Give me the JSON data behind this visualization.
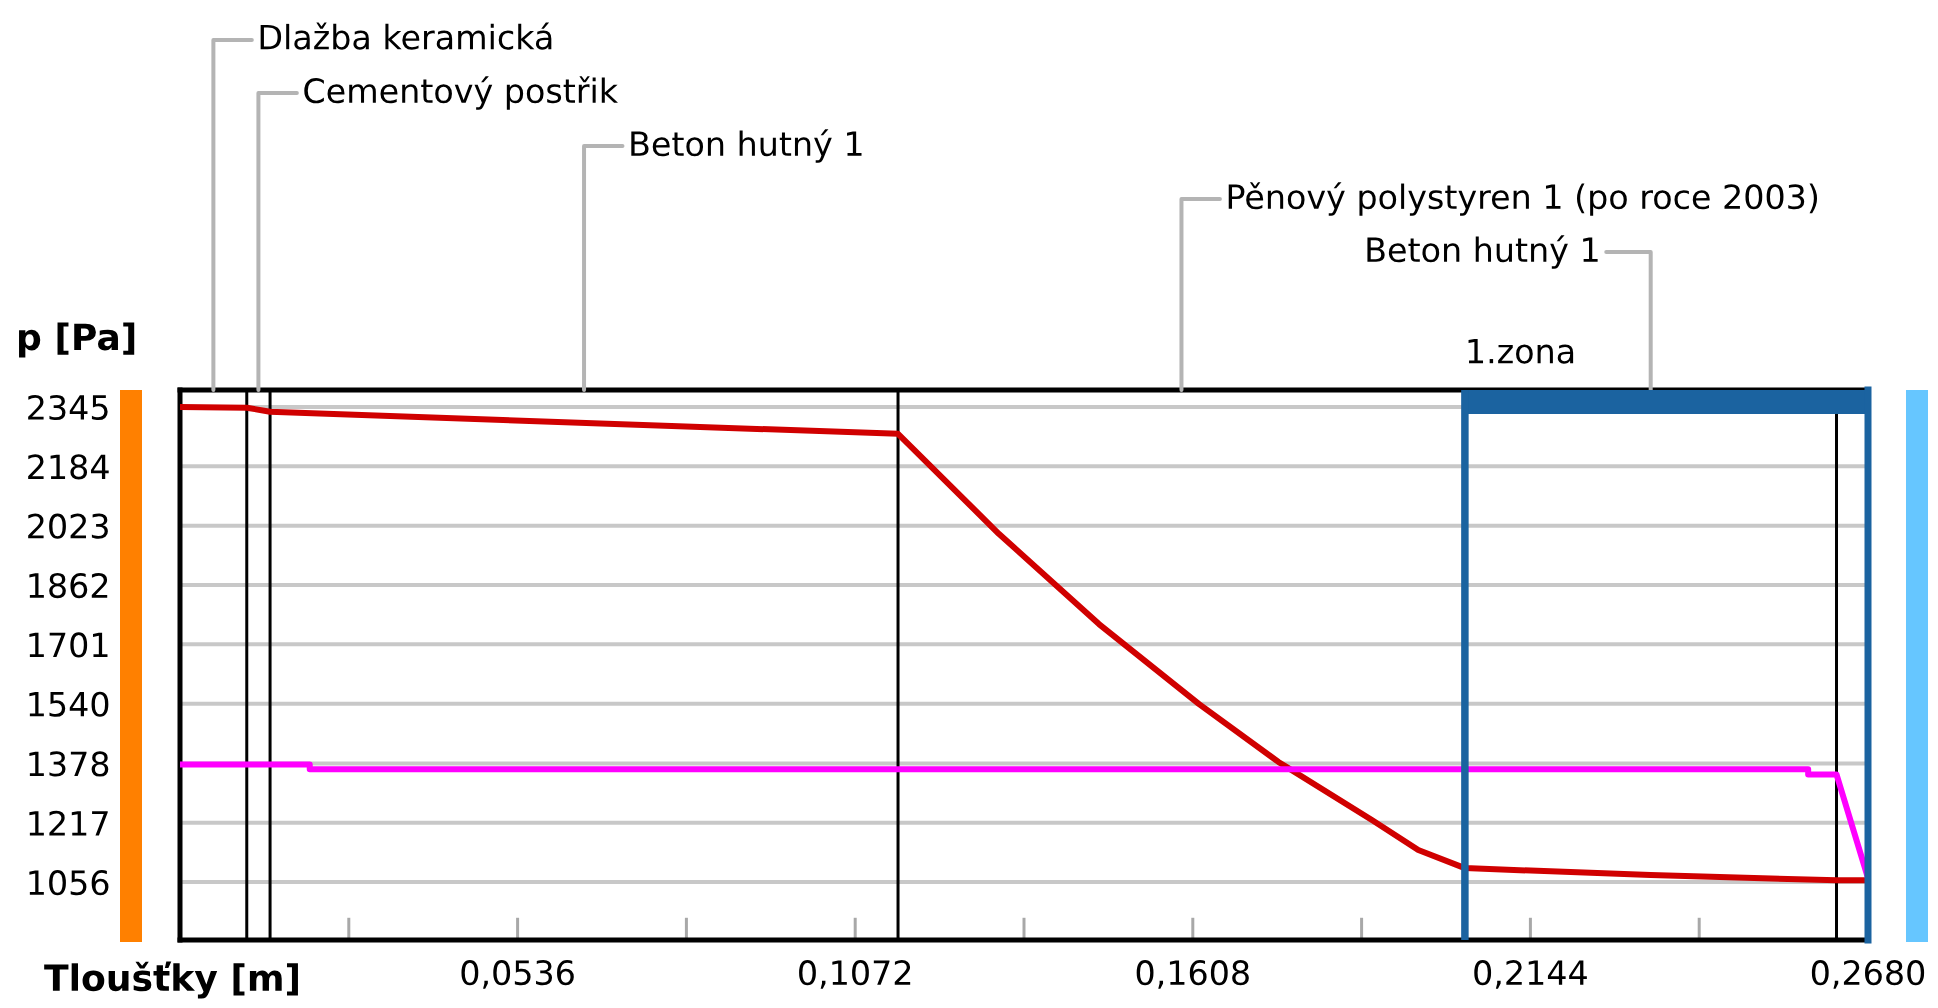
{
  "chart_data": {
    "type": "line",
    "xlabel": "Tloušťky [m]",
    "ylabel": "p [Pa]",
    "series": [
      {
        "color": "#d00000",
        "x": [
          0,
          0.0106,
          0.0143,
          0.114,
          0.13,
          0.1459,
          0.1618,
          0.1744,
          0.1893,
          0.1966,
          0.204,
          0.2335,
          0.263,
          0.268
        ],
        "values": [
          2345,
          2343,
          2332,
          2272,
          2001,
          1756,
          1539,
          1382,
          1224,
          1143,
          1094,
          1075,
          1061,
          1061
        ]
      },
      {
        "color": "#ff00ff",
        "x": [
          0,
          0.0206,
          0.0206,
          0.2585,
          0.2585,
          0.263,
          0.268
        ],
        "values": [
          1375,
          1375,
          1362,
          1362,
          1348,
          1348,
          1067
        ]
      }
    ],
    "xlim": [
      0,
      0.268
    ],
    "xticks": [
      {
        "value": 0.0268,
        "label": null
      },
      {
        "value": 0.0536,
        "label": "0,0536"
      },
      {
        "value": 0.0804,
        "label": null
      },
      {
        "value": 0.1072,
        "label": "0,1072"
      },
      {
        "value": 0.134,
        "label": null
      },
      {
        "value": 0.1608,
        "label": "0,1608"
      },
      {
        "value": 0.1876,
        "label": null
      },
      {
        "value": 0.2144,
        "label": "0,2144"
      },
      {
        "value": 0.2412,
        "label": null
      },
      {
        "value": 0.268,
        "label": "0,2680"
      }
    ],
    "ylim": [
      899,
      2391
    ],
    "yticks": [
      1056,
      1217,
      1378,
      1540,
      1701,
      1862,
      2023,
      2184,
      2345
    ],
    "grid": "y",
    "ref_lines": [
      {
        "axis": "x",
        "value": 0.0106,
        "color": "#000000"
      },
      {
        "axis": "x",
        "value": 0.0143,
        "color": "#000000"
      },
      {
        "axis": "x",
        "value": 0.114,
        "color": "#000000"
      },
      {
        "axis": "x",
        "value": 0.204,
        "color": "#1b63a0"
      },
      {
        "axis": "x",
        "value": 0.263,
        "color": "#000000"
      }
    ],
    "bands": [
      {
        "axis": "x",
        "from": 0.204,
        "to": 0.268,
        "label": "1.zona",
        "color": "#1b63a0"
      }
    ],
    "annotations": [
      "Dlažba keramická",
      "Cementový postřik",
      "Beton hutný 1",
      "Pěnový polystyren 1 (po roce 2003)",
      "Beton hutný 1"
    ]
  }
}
